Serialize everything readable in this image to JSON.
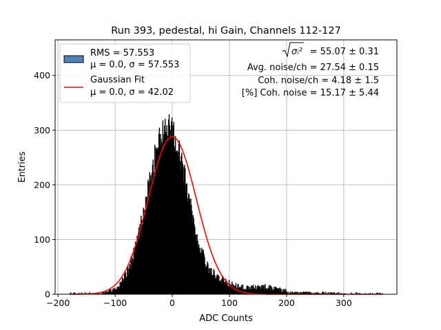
{
  "chart_data": {
    "type": "bar",
    "title": "Run 393, pedestal, hi Gain, Channels 112-127",
    "xlabel": "ADC Counts",
    "ylabel": "Entries",
    "xlim": [
      -205,
      393
    ],
    "ylim": [
      0,
      465
    ],
    "xticks": [
      -200,
      -100,
      0,
      100,
      200,
      300
    ],
    "yticks": [
      0,
      100,
      200,
      300,
      400
    ],
    "grid": true,
    "legend_position": "top-left",
    "legend": [
      {
        "kind": "patch",
        "color": "#4f81b8",
        "line1": "RMS = 57.553",
        "line2": "μ = 0.0, σ = 57.553"
      },
      {
        "kind": "line",
        "color": "#ff0000",
        "line1": "Gaussian Fit",
        "line2": "μ = 0.0, σ = 42.02"
      }
    ],
    "annotations": [
      {
        "prefix": "",
        "suffix": " = 55.07 ± 0.31",
        "sqrt_symbol": "σᵢ²"
      },
      {
        "text": "Avg. noise/ch = 27.54 ± 0.15"
      },
      {
        "text": "Coh. noise/ch = 4.18 ± 1.5"
      },
      {
        "text": "[%] Coh. noise = 15.17 ± 5.44"
      }
    ],
    "series": [
      {
        "kind": "histogram",
        "color": "#000000",
        "bin_width": 1,
        "x_range": [
          -180,
          368
        ],
        "peak": {
          "x": -5,
          "y": 335
        }
      },
      {
        "kind": "gaussian_fit",
        "color": "#ff0000",
        "mu": 0.0,
        "sigma": 42.02,
        "amplitude": 288,
        "x_range": [
          -180,
          368
        ]
      }
    ]
  }
}
